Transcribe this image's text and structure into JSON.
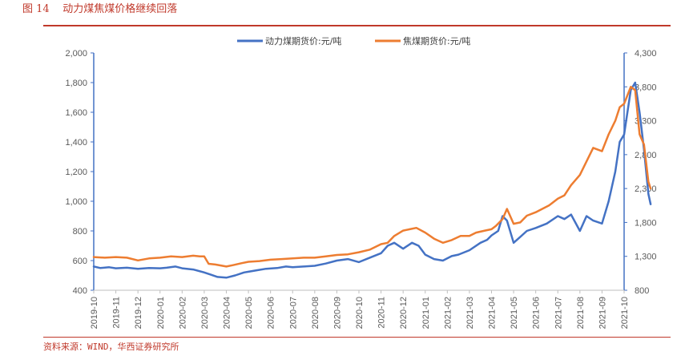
{
  "figure": {
    "title": "图 14    动力煤焦煤价格继续回落",
    "source": "资料来源：WIND，华西证券研究所"
  },
  "colors": {
    "accent": "#c0392b",
    "series_1": "#4472c4",
    "series_2": "#ed7d31",
    "axis": "#595959"
  },
  "chart_data": {
    "type": "line",
    "title": "动力煤焦煤价格继续回落",
    "x_ticks": [
      "2019-10",
      "2019-11",
      "2019-12",
      "2020-01",
      "2020-02",
      "2020-03",
      "2020-04",
      "2020-05",
      "2020-06",
      "2020-07",
      "2020-08",
      "2020-09",
      "2020-10",
      "2020-11",
      "2020-12",
      "2021-01",
      "2021-02",
      "2021-03",
      "2021-04",
      "2021-05",
      "2021-06",
      "2021-07",
      "2021-08",
      "2021-09",
      "2021-10"
    ],
    "y_left": {
      "min": 400,
      "max": 2000,
      "ticks": [
        "400",
        "600",
        "800",
        "1,000",
        "1,200",
        "1,400",
        "1,600",
        "1,800",
        "2,000"
      ]
    },
    "y_right": {
      "min": 800,
      "max": 4300,
      "ticks": [
        "800",
        "1,300",
        "1,800",
        "2,300",
        "2,800",
        "3,300",
        "3,800",
        "4,300"
      ]
    },
    "legend_position": "top",
    "series": [
      {
        "name": "动力煤期货价:元/吨",
        "axis": "left",
        "points": [
          [
            0,
            560
          ],
          [
            0.3,
            550
          ],
          [
            0.7,
            555
          ],
          [
            1,
            548
          ],
          [
            1.5,
            552
          ],
          [
            2,
            545
          ],
          [
            2.5,
            550
          ],
          [
            3,
            548
          ],
          [
            3.3,
            552
          ],
          [
            3.7,
            560
          ],
          [
            4,
            548
          ],
          [
            4.5,
            540
          ],
          [
            5,
            520
          ],
          [
            5.3,
            505
          ],
          [
            5.6,
            490
          ],
          [
            6,
            485
          ],
          [
            6.4,
            500
          ],
          [
            6.8,
            520
          ],
          [
            7,
            525
          ],
          [
            7.4,
            535
          ],
          [
            7.8,
            545
          ],
          [
            8.3,
            550
          ],
          [
            8.7,
            560
          ],
          [
            9,
            555
          ],
          [
            9.5,
            560
          ],
          [
            10,
            565
          ],
          [
            10.5,
            580
          ],
          [
            11,
            600
          ],
          [
            11.5,
            610
          ],
          [
            12,
            590
          ],
          [
            12.5,
            620
          ],
          [
            13,
            650
          ],
          [
            13.3,
            700
          ],
          [
            13.6,
            720
          ],
          [
            14,
            680
          ],
          [
            14.4,
            720
          ],
          [
            14.7,
            700
          ],
          [
            15,
            640
          ],
          [
            15.4,
            610
          ],
          [
            15.8,
            600
          ],
          [
            16.2,
            630
          ],
          [
            16.5,
            640
          ],
          [
            17,
            670
          ],
          [
            17.5,
            720
          ],
          [
            17.8,
            740
          ],
          [
            18,
            770
          ],
          [
            18.3,
            800
          ],
          [
            18.5,
            900
          ],
          [
            18.7,
            870
          ],
          [
            19,
            720
          ],
          [
            19.3,
            760
          ],
          [
            19.6,
            800
          ],
          [
            20,
            820
          ],
          [
            20.5,
            850
          ],
          [
            21,
            900
          ],
          [
            21.3,
            880
          ],
          [
            21.6,
            910
          ],
          [
            22,
            800
          ],
          [
            22.3,
            900
          ],
          [
            22.6,
            870
          ],
          [
            23,
            850
          ],
          [
            23.3,
            1000
          ],
          [
            23.6,
            1200
          ],
          [
            23.8,
            1400
          ],
          [
            24,
            1450
          ],
          [
            24.3,
            1750
          ],
          [
            24.5,
            1800
          ],
          [
            24.7,
            1600
          ],
          [
            24.9,
            1350
          ],
          [
            25.1,
            1050
          ],
          [
            25.2,
            980
          ]
        ]
      },
      {
        "name": "焦煤期货价:元/吨",
        "axis": "right",
        "points": [
          [
            0,
            1290
          ],
          [
            0.5,
            1280
          ],
          [
            1,
            1290
          ],
          [
            1.5,
            1280
          ],
          [
            2,
            1240
          ],
          [
            2.5,
            1270
          ],
          [
            3,
            1280
          ],
          [
            3.5,
            1300
          ],
          [
            4,
            1290
          ],
          [
            4.5,
            1310
          ],
          [
            4.8,
            1300
          ],
          [
            5,
            1300
          ],
          [
            5.2,
            1190
          ],
          [
            5.5,
            1180
          ],
          [
            6,
            1150
          ],
          [
            6.3,
            1170
          ],
          [
            6.7,
            1200
          ],
          [
            7,
            1220
          ],
          [
            7.5,
            1230
          ],
          [
            8,
            1250
          ],
          [
            8.5,
            1260
          ],
          [
            9,
            1270
          ],
          [
            9.5,
            1280
          ],
          [
            10,
            1280
          ],
          [
            10.5,
            1300
          ],
          [
            11,
            1320
          ],
          [
            11.5,
            1330
          ],
          [
            12,
            1360
          ],
          [
            12.5,
            1400
          ],
          [
            13,
            1480
          ],
          [
            13.3,
            1500
          ],
          [
            13.6,
            1600
          ],
          [
            14,
            1680
          ],
          [
            14.3,
            1700
          ],
          [
            14.6,
            1720
          ],
          [
            15,
            1650
          ],
          [
            15.4,
            1560
          ],
          [
            15.8,
            1500
          ],
          [
            16.2,
            1540
          ],
          [
            16.6,
            1600
          ],
          [
            17,
            1600
          ],
          [
            17.3,
            1650
          ],
          [
            17.7,
            1680
          ],
          [
            18,
            1700
          ],
          [
            18.2,
            1750
          ],
          [
            18.5,
            1850
          ],
          [
            18.7,
            2000
          ],
          [
            19,
            1780
          ],
          [
            19.3,
            1800
          ],
          [
            19.6,
            1900
          ],
          [
            20,
            1950
          ],
          [
            20.3,
            2000
          ],
          [
            20.6,
            2050
          ],
          [
            21,
            2150
          ],
          [
            21.3,
            2200
          ],
          [
            21.6,
            2350
          ],
          [
            22,
            2500
          ],
          [
            22.3,
            2700
          ],
          [
            22.6,
            2900
          ],
          [
            23,
            2850
          ],
          [
            23.3,
            3100
          ],
          [
            23.6,
            3300
          ],
          [
            23.8,
            3500
          ],
          [
            24,
            3550
          ],
          [
            24.3,
            3800
          ],
          [
            24.5,
            3750
          ],
          [
            24.7,
            3100
          ],
          [
            24.9,
            2950
          ],
          [
            25.1,
            2400
          ],
          [
            25.2,
            2300
          ]
        ]
      }
    ]
  }
}
